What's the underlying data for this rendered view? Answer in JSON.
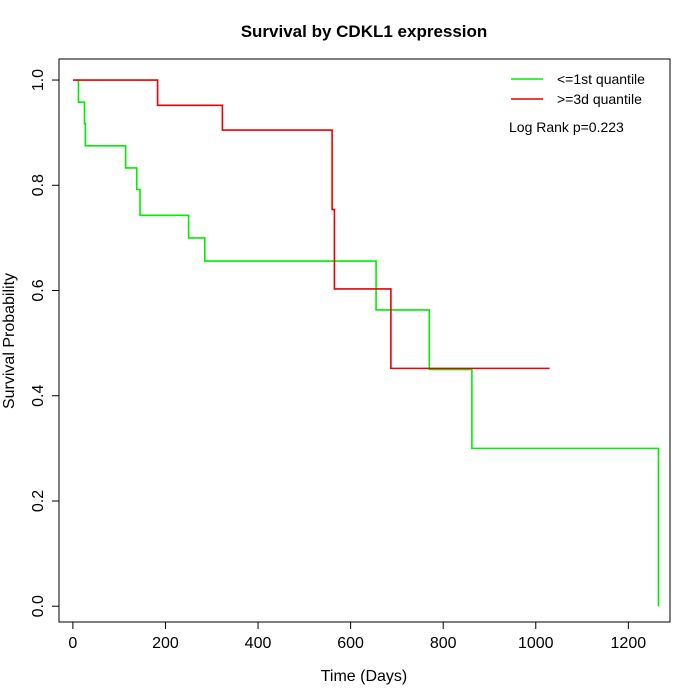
{
  "chart_data": {
    "type": "line",
    "title": "Survival by CDKL1 expression",
    "xlabel": "Time (Days)",
    "ylabel": "Survival Probability",
    "xlim": [
      -30,
      1290
    ],
    "ylim": [
      -0.03,
      1.04
    ],
    "x_ticks": [
      0,
      200,
      400,
      600,
      800,
      1000,
      1200
    ],
    "x_tick_labels": [
      "0",
      "200",
      "400",
      "600",
      "800",
      "1000",
      "1200"
    ],
    "y_ticks": [
      0.0,
      0.2,
      0.4,
      0.6,
      0.8,
      1.0
    ],
    "y_tick_labels": [
      "0.0",
      "0.2",
      "0.4",
      "0.6",
      "0.8",
      "1.0"
    ],
    "legend_position": "top-right",
    "annotation": "Log Rank p=0.223",
    "grid": false,
    "series": [
      {
        "name": "<=1st quantile",
        "color": "#00ee00",
        "step": true,
        "points": [
          [
            8,
            1.0
          ],
          [
            12,
            0.958
          ],
          [
            25,
            0.917
          ],
          [
            27,
            0.875
          ],
          [
            114,
            0.833
          ],
          [
            138,
            0.792
          ],
          [
            145,
            0.743
          ],
          [
            250,
            0.7
          ],
          [
            285,
            0.656
          ],
          [
            655,
            0.563
          ],
          [
            770,
            0.45
          ],
          [
            862,
            0.3
          ],
          [
            1265,
            0.0
          ]
        ]
      },
      {
        "name": ">=3d quantile",
        "color": "#ee0000",
        "step": true,
        "points": [
          [
            0,
            1.0
          ],
          [
            183,
            0.952
          ],
          [
            323,
            0.905
          ],
          [
            560,
            0.754
          ],
          [
            565,
            0.603
          ],
          [
            687,
            0.452
          ],
          [
            1030,
            0.452
          ]
        ]
      }
    ]
  }
}
